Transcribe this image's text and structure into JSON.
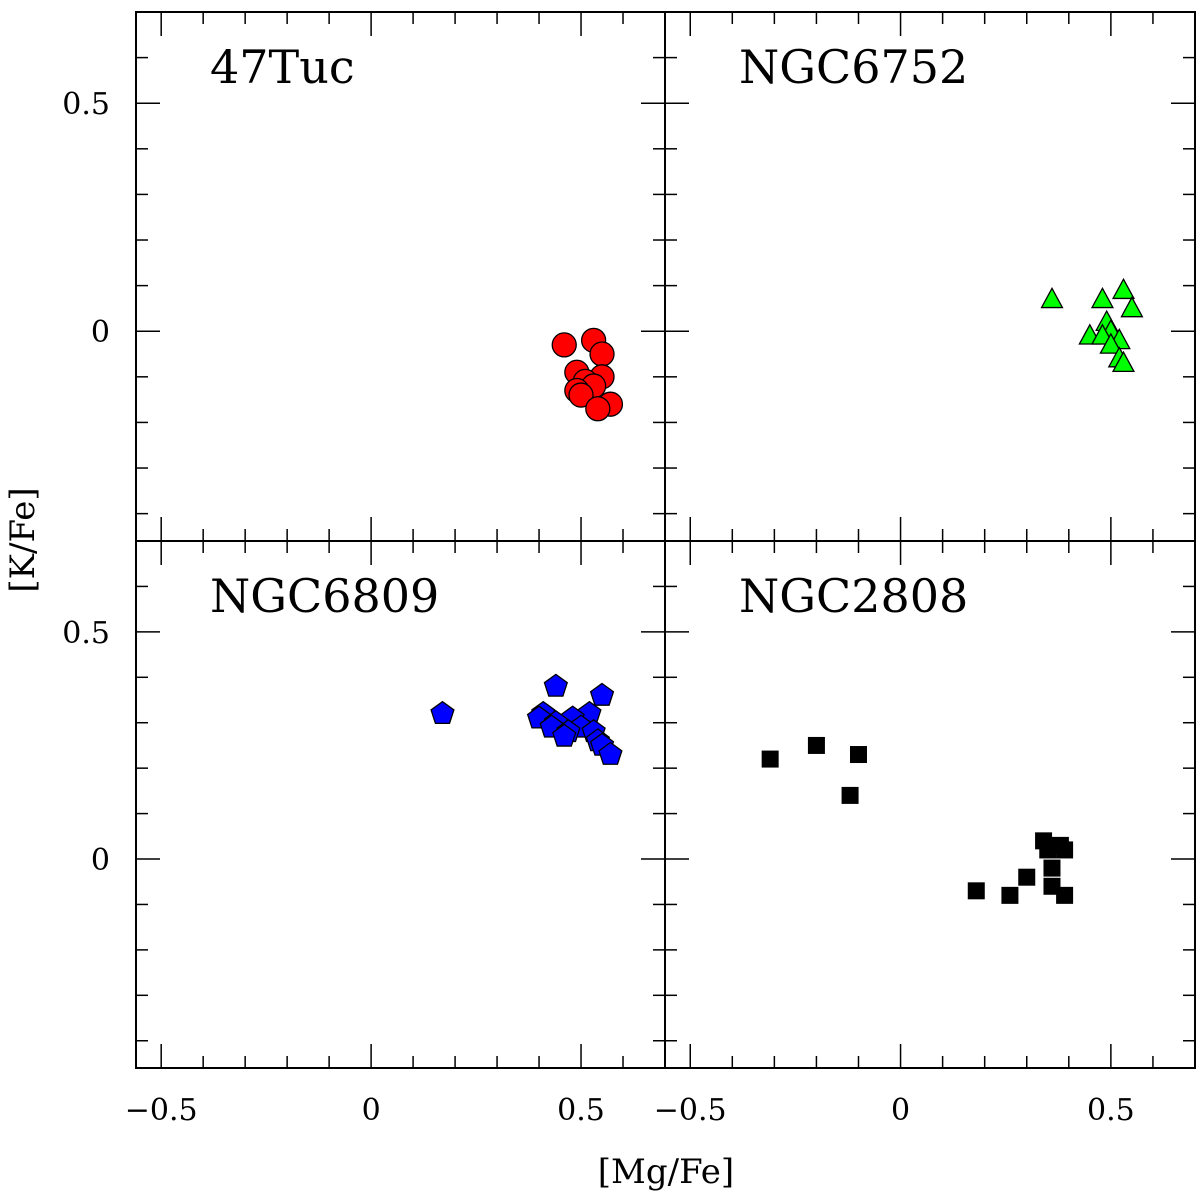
{
  "chart_data": {
    "type": "scatter",
    "layout": "2x2 panels with shared axes",
    "xlabel": "[Mg/Fe]",
    "ylabel": "[K/Fe]",
    "xlim": [
      -0.56,
      0.7
    ],
    "ylim": [
      -0.46,
      0.7
    ],
    "x_ticks": [
      -0.5,
      0,
      0.5
    ],
    "x_tick_labels": [
      "−0.5",
      "0",
      "0.5"
    ],
    "y_ticks": [
      0,
      0.5
    ],
    "y_tick_labels": [
      "0",
      "0.5"
    ],
    "panels": [
      {
        "title": "47Tuc",
        "marker": "circle",
        "color": "#ff0000",
        "points": [
          {
            "x": 0.46,
            "y": -0.03
          },
          {
            "x": 0.53,
            "y": -0.02
          },
          {
            "x": 0.55,
            "y": -0.05
          },
          {
            "x": 0.49,
            "y": -0.09
          },
          {
            "x": 0.55,
            "y": -0.1
          },
          {
            "x": 0.51,
            "y": -0.11
          },
          {
            "x": 0.53,
            "y": -0.12
          },
          {
            "x": 0.49,
            "y": -0.13
          },
          {
            "x": 0.5,
            "y": -0.14
          },
          {
            "x": 0.57,
            "y": -0.16
          },
          {
            "x": 0.54,
            "y": -0.17
          }
        ]
      },
      {
        "title": "NGC6752",
        "marker": "triangle",
        "color": "#00ff00",
        "points": [
          {
            "x": 0.36,
            "y": 0.07
          },
          {
            "x": 0.48,
            "y": 0.07
          },
          {
            "x": 0.53,
            "y": 0.09
          },
          {
            "x": 0.55,
            "y": 0.05
          },
          {
            "x": 0.49,
            "y": 0.02
          },
          {
            "x": 0.5,
            "y": 0.0
          },
          {
            "x": 0.45,
            "y": -0.01
          },
          {
            "x": 0.48,
            "y": -0.01
          },
          {
            "x": 0.52,
            "y": -0.02
          },
          {
            "x": 0.5,
            "y": -0.03
          },
          {
            "x": 0.52,
            "y": -0.06
          },
          {
            "x": 0.53,
            "y": -0.07
          }
        ]
      },
      {
        "title": "NGC6809",
        "marker": "pentagon",
        "color": "#0000ff",
        "points": [
          {
            "x": 0.17,
            "y": 0.32
          },
          {
            "x": 0.44,
            "y": 0.38
          },
          {
            "x": 0.55,
            "y": 0.36
          },
          {
            "x": 0.41,
            "y": 0.32
          },
          {
            "x": 0.52,
            "y": 0.32
          },
          {
            "x": 0.4,
            "y": 0.31
          },
          {
            "x": 0.48,
            "y": 0.31
          },
          {
            "x": 0.44,
            "y": 0.3
          },
          {
            "x": 0.5,
            "y": 0.29
          },
          {
            "x": 0.43,
            "y": 0.29
          },
          {
            "x": 0.47,
            "y": 0.28
          },
          {
            "x": 0.53,
            "y": 0.28
          },
          {
            "x": 0.46,
            "y": 0.27
          },
          {
            "x": 0.54,
            "y": 0.26
          },
          {
            "x": 0.55,
            "y": 0.25
          },
          {
            "x": 0.57,
            "y": 0.23
          }
        ]
      },
      {
        "title": "NGC2808",
        "marker": "square",
        "color": "#000000",
        "points": [
          {
            "x": -0.31,
            "y": 0.22
          },
          {
            "x": -0.2,
            "y": 0.25
          },
          {
            "x": -0.1,
            "y": 0.23
          },
          {
            "x": -0.12,
            "y": 0.14
          },
          {
            "x": 0.34,
            "y": 0.04
          },
          {
            "x": 0.35,
            "y": 0.02
          },
          {
            "x": 0.38,
            "y": 0.03
          },
          {
            "x": 0.39,
            "y": 0.02
          },
          {
            "x": 0.36,
            "y": -0.02
          },
          {
            "x": 0.3,
            "y": -0.04
          },
          {
            "x": 0.18,
            "y": -0.07
          },
          {
            "x": 0.26,
            "y": -0.08
          },
          {
            "x": 0.36,
            "y": -0.06
          },
          {
            "x": 0.39,
            "y": -0.08
          }
        ]
      }
    ]
  }
}
